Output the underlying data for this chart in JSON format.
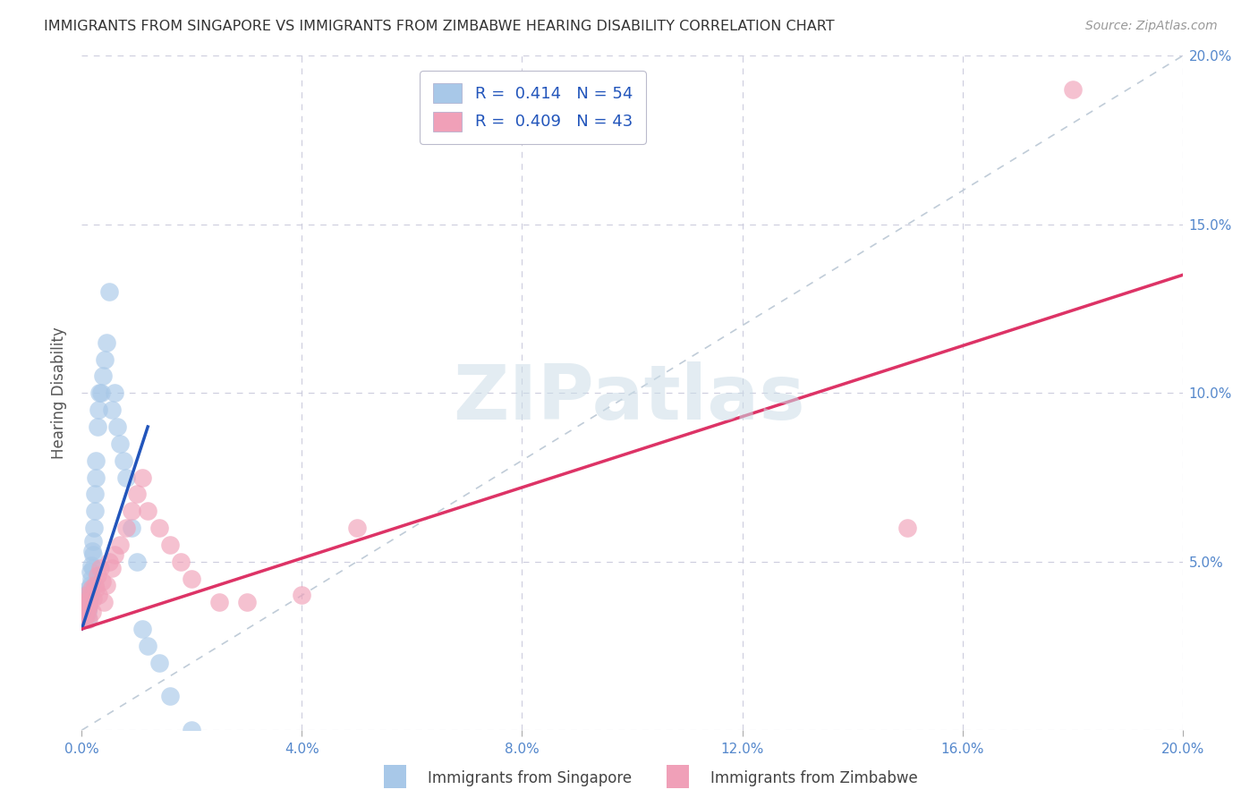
{
  "title": "IMMIGRANTS FROM SINGAPORE VS IMMIGRANTS FROM ZIMBABWE HEARING DISABILITY CORRELATION CHART",
  "source": "Source: ZipAtlas.com",
  "ylabel": "Hearing Disability",
  "xlim": [
    0.0,
    0.2
  ],
  "ylim": [
    0.0,
    0.2
  ],
  "singapore_R": "0.414",
  "singapore_N": "54",
  "zimbabwe_R": "0.409",
  "zimbabwe_N": "43",
  "singapore_color": "#a8c8e8",
  "zimbabwe_color": "#f0a0b8",
  "singapore_line_color": "#2255bb",
  "zimbabwe_line_color": "#dd3366",
  "diagonal_color": "#c0ccd8",
  "background_color": "#ffffff",
  "singapore_x": [
    0.0002,
    0.0003,
    0.0004,
    0.0005,
    0.0005,
    0.0006,
    0.0007,
    0.0007,
    0.0008,
    0.0009,
    0.001,
    0.001,
    0.001,
    0.0011,
    0.0012,
    0.0012,
    0.0013,
    0.0013,
    0.0014,
    0.0015,
    0.0015,
    0.0016,
    0.0017,
    0.0018,
    0.0019,
    0.002,
    0.002,
    0.0021,
    0.0022,
    0.0023,
    0.0024,
    0.0025,
    0.0026,
    0.0028,
    0.003,
    0.0032,
    0.0035,
    0.0038,
    0.0042,
    0.0045,
    0.005,
    0.0055,
    0.006,
    0.0065,
    0.007,
    0.0075,
    0.008,
    0.009,
    0.01,
    0.011,
    0.012,
    0.014,
    0.016,
    0.02
  ],
  "singapore_y": [
    0.035,
    0.037,
    0.034,
    0.036,
    0.039,
    0.033,
    0.036,
    0.04,
    0.035,
    0.038,
    0.033,
    0.036,
    0.04,
    0.035,
    0.038,
    0.042,
    0.037,
    0.041,
    0.039,
    0.043,
    0.047,
    0.041,
    0.045,
    0.049,
    0.053,
    0.048,
    0.052,
    0.056,
    0.06,
    0.065,
    0.07,
    0.075,
    0.08,
    0.09,
    0.095,
    0.1,
    0.1,
    0.105,
    0.11,
    0.115,
    0.13,
    0.095,
    0.1,
    0.09,
    0.085,
    0.08,
    0.075,
    0.06,
    0.05,
    0.03,
    0.025,
    0.02,
    0.01,
    0.0
  ],
  "zimbabwe_x": [
    0.0002,
    0.0003,
    0.0004,
    0.0005,
    0.0006,
    0.0007,
    0.0008,
    0.0009,
    0.001,
    0.0011,
    0.0012,
    0.0013,
    0.0015,
    0.0017,
    0.0019,
    0.0021,
    0.0023,
    0.0025,
    0.0028,
    0.003,
    0.0033,
    0.0036,
    0.004,
    0.0045,
    0.005,
    0.0055,
    0.006,
    0.007,
    0.008,
    0.009,
    0.01,
    0.011,
    0.012,
    0.014,
    0.016,
    0.018,
    0.02,
    0.025,
    0.03,
    0.04,
    0.05,
    0.15,
    0.18
  ],
  "zimbabwe_y": [
    0.034,
    0.036,
    0.033,
    0.038,
    0.035,
    0.037,
    0.034,
    0.04,
    0.036,
    0.038,
    0.033,
    0.037,
    0.04,
    0.042,
    0.035,
    0.039,
    0.043,
    0.042,
    0.046,
    0.04,
    0.048,
    0.044,
    0.038,
    0.043,
    0.05,
    0.048,
    0.052,
    0.055,
    0.06,
    0.065,
    0.07,
    0.075,
    0.065,
    0.06,
    0.055,
    0.05,
    0.045,
    0.038,
    0.038,
    0.04,
    0.06,
    0.06,
    0.19
  ],
  "sg_line_x0": 0.0,
  "sg_line_x1": 0.012,
  "sg_line_y0": 0.03,
  "sg_line_y1": 0.09,
  "zw_line_x0": 0.0,
  "zw_line_x1": 0.2,
  "zw_line_y0": 0.03,
  "zw_line_y1": 0.135
}
